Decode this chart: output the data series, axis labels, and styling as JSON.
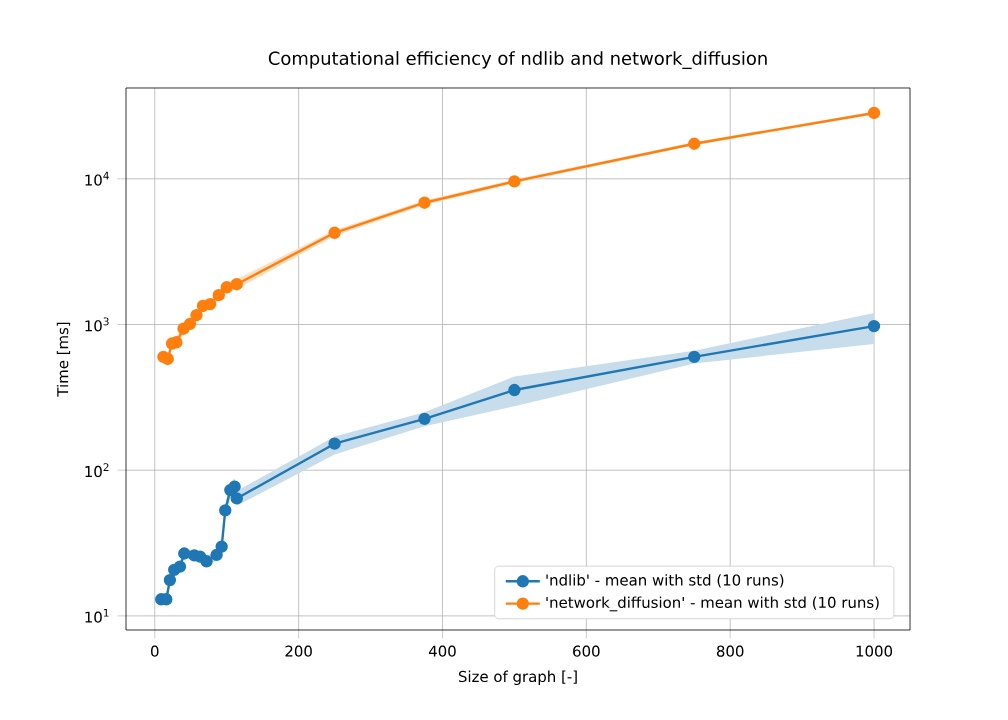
{
  "chart_data": {
    "type": "line",
    "title": "Computational efficiency of ndlib and network_diffusion",
    "xlabel": "Size of graph [-]",
    "ylabel": "Time [ms]",
    "log": "y",
    "grid": true,
    "legend": "bottom right",
    "marker": "circle",
    "line_style": "solid",
    "xlim": [
      -40,
      1050
    ],
    "xticks": [
      0,
      200,
      400,
      600,
      800,
      1000
    ],
    "ylim": [
      8,
      42000
    ],
    "yticks": [
      {
        "value": 10,
        "label": "10$^{1}$"
      },
      {
        "value": 100,
        "label": "10$^{2}$"
      },
      {
        "value": 1000,
        "label": "10$^{3}$"
      },
      {
        "value": 10000,
        "label": "10$^{4}$"
      }
    ],
    "series": [
      {
        "name": "'ndlib' - mean with std (10 runs)",
        "color": "#1f77b4",
        "x": [
          9,
          16,
          21,
          27,
          35,
          41,
          55,
          63,
          72,
          86,
          93,
          98,
          105,
          111,
          114,
          250,
          375,
          500,
          750,
          1000
        ],
        "values": [
          13,
          13,
          17.6,
          20.7,
          21.8,
          26.8,
          26,
          25.5,
          23.7,
          26.2,
          29.9,
          53,
          73,
          77,
          64,
          152,
          225,
          355,
          600,
          975
        ],
        "lower": [
          12,
          12,
          16,
          19,
          20,
          25,
          24,
          23.5,
          22,
          24,
          27.5,
          48,
          64,
          68,
          57,
          128,
          200,
          275,
          540,
          735
        ],
        "upper": [
          14,
          14,
          19,
          22.5,
          23.5,
          29,
          28,
          27.5,
          25.5,
          28.5,
          32.5,
          58,
          82,
          88,
          72,
          170,
          250,
          440,
          660,
          1200
        ]
      },
      {
        "name": "'network_diffusion' - mean with std (10 runs)",
        "color": "#ff7f0e",
        "x": [
          12,
          18,
          24,
          30,
          40,
          49,
          58,
          67,
          77,
          89,
          100,
          114,
          250,
          375,
          500,
          750,
          1000
        ],
        "values": [
          600,
          580,
          740,
          755,
          935,
          1010,
          1160,
          1340,
          1380,
          1590,
          1800,
          1890,
          4260,
          6850,
          9600,
          17400,
          28300
        ],
        "lower": [
          560,
          540,
          690,
          700,
          870,
          940,
          1080,
          1250,
          1280,
          1480,
          1650,
          1750,
          4050,
          6600,
          9300,
          17000,
          27600
        ],
        "upper": [
          640,
          620,
          800,
          820,
          1000,
          1080,
          1240,
          1430,
          1480,
          1700,
          1950,
          2050,
          4450,
          7100,
          9900,
          17800,
          29000
        ]
      }
    ]
  }
}
